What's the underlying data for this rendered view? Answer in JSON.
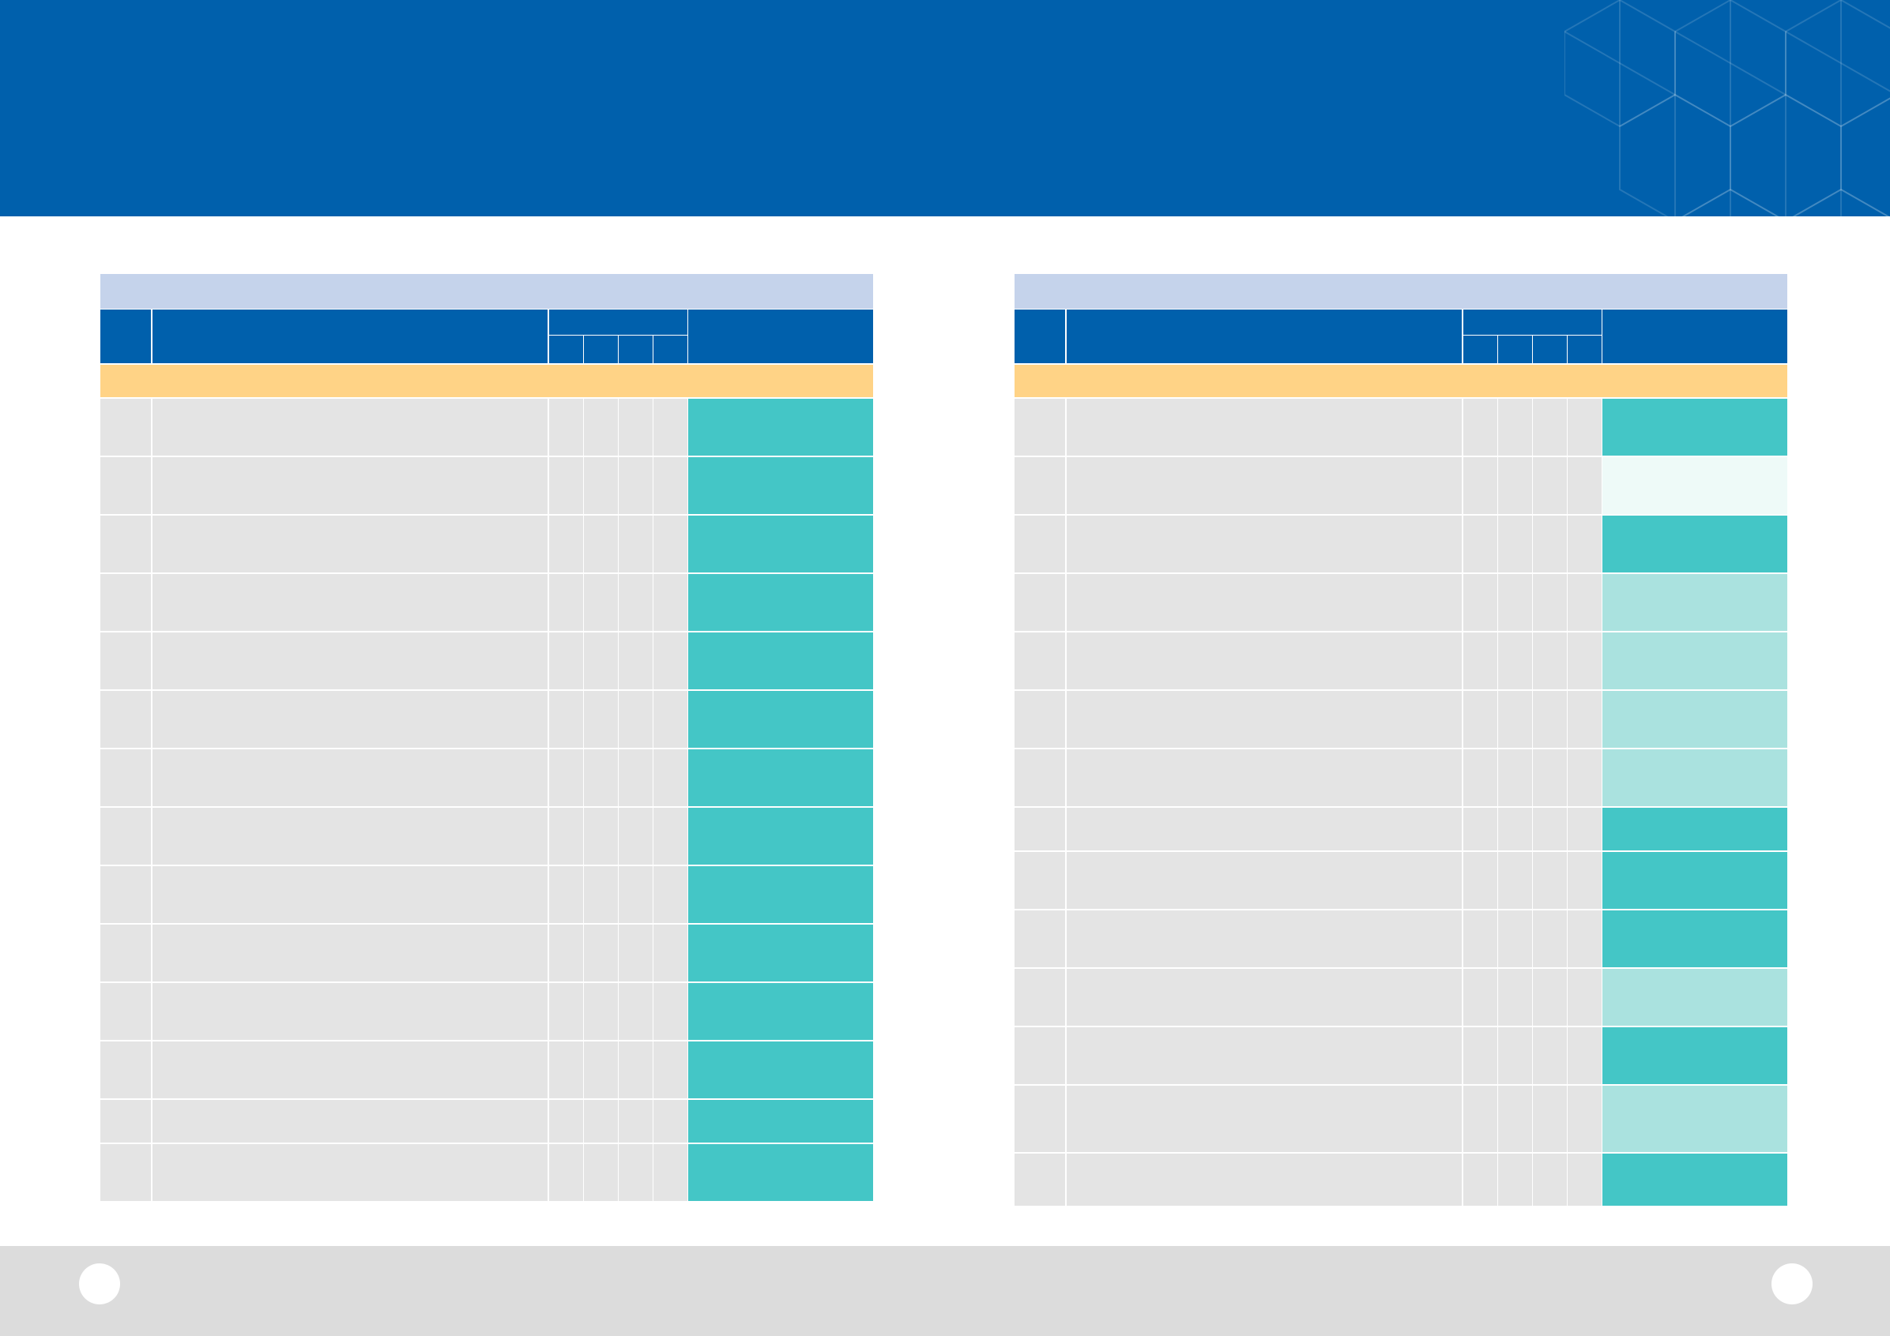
{
  "header": {
    "title": "",
    "subtitle": ""
  },
  "colors": {
    "brand_blue": "#0060ac",
    "caption_bg": "#c5d3eb",
    "section_bg": "#ffd386",
    "cell_bg": "#e4e4e4",
    "teal_strong": "#44c6c6",
    "teal_light": "#aae2df",
    "teal_faint": "#eefaf8",
    "footer_bg": "#dcdcdc"
  },
  "left_table": {
    "caption": "",
    "columns": {
      "no": "",
      "name": "",
      "group": "",
      "sub": [
        "",
        "",
        "",
        ""
      ],
      "status": ""
    },
    "section": "",
    "rows": [
      {
        "tone": "teal_strong",
        "h": 72,
        "no": "",
        "name": "",
        "c1": "",
        "c2": "",
        "c3": "",
        "c4": "",
        "status": ""
      },
      {
        "tone": "teal_strong",
        "h": 72,
        "no": "",
        "name": "",
        "c1": "",
        "c2": "",
        "c3": "",
        "c4": "",
        "status": ""
      },
      {
        "tone": "teal_strong",
        "h": 72,
        "no": "",
        "name": "",
        "c1": "",
        "c2": "",
        "c3": "",
        "c4": "",
        "status": ""
      },
      {
        "tone": "teal_strong",
        "h": 72,
        "no": "",
        "name": "",
        "c1": "",
        "c2": "",
        "c3": "",
        "c4": "",
        "status": ""
      },
      {
        "tone": "teal_strong",
        "h": 72,
        "no": "",
        "name": "",
        "c1": "",
        "c2": "",
        "c3": "",
        "c4": "",
        "status": ""
      },
      {
        "tone": "teal_strong",
        "h": 72,
        "no": "",
        "name": "",
        "c1": "",
        "c2": "",
        "c3": "",
        "c4": "",
        "status": ""
      },
      {
        "tone": "teal_strong",
        "h": 72,
        "no": "",
        "name": "",
        "c1": "",
        "c2": "",
        "c3": "",
        "c4": "",
        "status": ""
      },
      {
        "tone": "teal_strong",
        "h": 72,
        "no": "",
        "name": "",
        "c1": "",
        "c2": "",
        "c3": "",
        "c4": "",
        "status": ""
      },
      {
        "tone": "teal_strong",
        "h": 72,
        "no": "",
        "name": "",
        "c1": "",
        "c2": "",
        "c3": "",
        "c4": "",
        "status": ""
      },
      {
        "tone": "teal_strong",
        "h": 72,
        "no": "",
        "name": "",
        "c1": "",
        "c2": "",
        "c3": "",
        "c4": "",
        "status": ""
      },
      {
        "tone": "teal_strong",
        "h": 72,
        "no": "",
        "name": "",
        "c1": "",
        "c2": "",
        "c3": "",
        "c4": "",
        "status": ""
      },
      {
        "tone": "teal_strong",
        "h": 72,
        "no": "",
        "name": "",
        "c1": "",
        "c2": "",
        "c3": "",
        "c4": "",
        "status": ""
      },
      {
        "tone": "teal_strong",
        "h": 54,
        "no": "",
        "name": "",
        "c1": "",
        "c2": "",
        "c3": "",
        "c4": "",
        "status": ""
      },
      {
        "tone": "teal_strong",
        "h": 72,
        "no": "",
        "name": "",
        "c1": "",
        "c2": "",
        "c3": "",
        "c4": "",
        "status": ""
      }
    ]
  },
  "right_table": {
    "caption": "",
    "columns": {
      "no": "",
      "name": "",
      "group": "",
      "sub": [
        "",
        "",
        "",
        ""
      ],
      "status": ""
    },
    "section": "",
    "rows": [
      {
        "tone": "teal_strong",
        "h": 72,
        "no": "",
        "name": "",
        "c1": "",
        "c2": "",
        "c3": "",
        "c4": "",
        "status": ""
      },
      {
        "tone": "teal_faint",
        "h": 72,
        "no": "",
        "name": "",
        "c1": "",
        "c2": "",
        "c3": "",
        "c4": "",
        "status": ""
      },
      {
        "tone": "teal_strong",
        "h": 72,
        "no": "",
        "name": "",
        "c1": "",
        "c2": "",
        "c3": "",
        "c4": "",
        "status": ""
      },
      {
        "tone": "teal_light",
        "h": 72,
        "no": "",
        "name": "",
        "c1": "",
        "c2": "",
        "c3": "",
        "c4": "",
        "status": ""
      },
      {
        "tone": "teal_light",
        "h": 72,
        "no": "",
        "name": "",
        "c1": "",
        "c2": "",
        "c3": "",
        "c4": "",
        "status": ""
      },
      {
        "tone": "teal_light",
        "h": 72,
        "no": "",
        "name": "",
        "c1": "",
        "c2": "",
        "c3": "",
        "c4": "",
        "status": ""
      },
      {
        "tone": "teal_light",
        "h": 72,
        "no": "",
        "name": "",
        "c1": "",
        "c2": "",
        "c3": "",
        "c4": "",
        "status": ""
      },
      {
        "tone": "teal_strong",
        "h": 54,
        "no": "",
        "name": "",
        "c1": "",
        "c2": "",
        "c3": "",
        "c4": "",
        "status": ""
      },
      {
        "tone": "teal_strong",
        "h": 72,
        "no": "",
        "name": "",
        "c1": "",
        "c2": "",
        "c3": "",
        "c4": "",
        "status": ""
      },
      {
        "tone": "teal_strong",
        "h": 72,
        "no": "",
        "name": "",
        "c1": "",
        "c2": "",
        "c3": "",
        "c4": "",
        "status": ""
      },
      {
        "tone": "teal_light",
        "h": 72,
        "no": "",
        "name": "",
        "c1": "",
        "c2": "",
        "c3": "",
        "c4": "",
        "status": ""
      },
      {
        "tone": "teal_strong",
        "h": 72,
        "no": "",
        "name": "",
        "c1": "",
        "c2": "",
        "c3": "",
        "c4": "",
        "status": ""
      },
      {
        "tone": "teal_light",
        "h": 84,
        "no": "",
        "name": "",
        "c1": "",
        "c2": "",
        "c3": "",
        "c4": "",
        "status": ""
      },
      {
        "tone": "teal_strong",
        "h": 66,
        "no": "",
        "name": "",
        "c1": "",
        "c2": "",
        "c3": "",
        "c4": "",
        "status": ""
      }
    ]
  },
  "footer": {
    "page_left": "",
    "page_right": ""
  }
}
